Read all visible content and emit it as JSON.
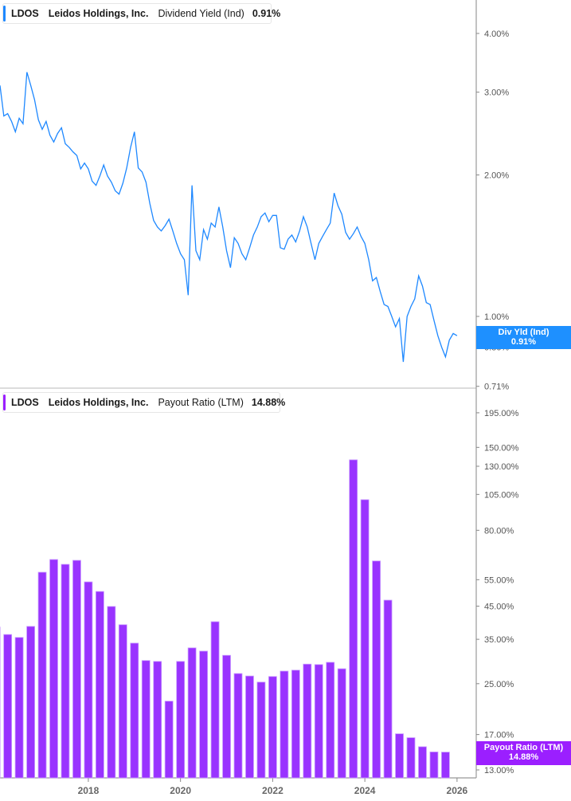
{
  "colors": {
    "yield_line": "#1e88ff",
    "payout_bar": "#9933ff",
    "payout_bar_edge": "#c99cff",
    "axis": "#999999",
    "yield_badge": "#1e90ff",
    "payout_badge": "#9b1fff"
  },
  "top_legend": {
    "ticker": "LDOS",
    "company": "Leidos Holdings, Inc.",
    "metric": "Dividend Yield (Ind)",
    "value": "0.91%"
  },
  "bottom_legend": {
    "ticker": "LDOS",
    "company": "Leidos Holdings, Inc.",
    "metric": "Payout Ratio (LTM)",
    "value": "14.88%"
  },
  "top_badge": {
    "label": "Div Yld (Ind)",
    "value": "0.91%"
  },
  "bottom_badge": {
    "label": "Payout Ratio (LTM)",
    "value": "14.88%"
  },
  "chart_data": [
    {
      "type": "line",
      "series_name": "Dividend Yield (Ind)",
      "y_scale": "log",
      "y_unit": "%",
      "y_ticks": [
        "4.00%",
        "3.00%",
        "2.00%",
        "1.00%",
        "0.86%",
        "0.71%"
      ],
      "y_tick_values": [
        4.0,
        3.0,
        2.0,
        1.0,
        0.86,
        0.71
      ],
      "xlim": [
        "2016-02",
        "2026-06"
      ],
      "grid": false,
      "x": [
        "2016-02",
        "2016-03",
        "2016-04",
        "2016-05",
        "2016-06",
        "2016-07",
        "2016-08",
        "2016-09",
        "2016-10",
        "2016-11",
        "2016-12",
        "2017-01",
        "2017-02",
        "2017-03",
        "2017-04",
        "2017-05",
        "2017-06",
        "2017-07",
        "2017-08",
        "2017-09",
        "2017-10",
        "2017-11",
        "2017-12",
        "2018-01",
        "2018-02",
        "2018-03",
        "2018-04",
        "2018-05",
        "2018-06",
        "2018-07",
        "2018-08",
        "2018-09",
        "2018-10",
        "2018-11",
        "2018-12",
        "2019-01",
        "2019-02",
        "2019-03",
        "2019-04",
        "2019-05",
        "2019-06",
        "2019-07",
        "2019-08",
        "2019-09",
        "2019-10",
        "2019-11",
        "2019-12",
        "2020-01",
        "2020-02",
        "2020-03",
        "2020-04",
        "2020-05",
        "2020-06",
        "2020-07",
        "2020-08",
        "2020-09",
        "2020-10",
        "2020-11",
        "2020-12",
        "2021-01",
        "2021-02",
        "2021-03",
        "2021-04",
        "2021-05",
        "2021-06",
        "2021-07",
        "2021-08",
        "2021-09",
        "2021-10",
        "2021-11",
        "2021-12",
        "2022-01",
        "2022-02",
        "2022-03",
        "2022-04",
        "2022-05",
        "2022-06",
        "2022-07",
        "2022-08",
        "2022-09",
        "2022-10",
        "2022-11",
        "2022-12",
        "2023-01",
        "2023-02",
        "2023-03",
        "2023-04",
        "2023-05",
        "2023-06",
        "2023-07",
        "2023-08",
        "2023-09",
        "2023-10",
        "2023-11",
        "2023-12",
        "2024-01",
        "2024-02",
        "2024-03",
        "2024-04",
        "2024-05",
        "2024-06",
        "2024-07",
        "2024-08",
        "2024-09",
        "2024-10",
        "2024-11",
        "2024-12",
        "2025-01",
        "2025-02",
        "2025-03",
        "2025-04",
        "2025-05",
        "2025-06",
        "2025-07",
        "2025-08",
        "2025-09",
        "2025-10",
        "2025-11",
        "2025-12",
        "2026-01"
      ],
      "y": [
        3.1,
        2.67,
        2.7,
        2.6,
        2.47,
        2.64,
        2.57,
        3.31,
        3.1,
        2.89,
        2.62,
        2.5,
        2.6,
        2.43,
        2.35,
        2.45,
        2.52,
        2.33,
        2.29,
        2.24,
        2.2,
        2.06,
        2.12,
        2.06,
        1.94,
        1.9,
        1.99,
        2.1,
        1.99,
        1.93,
        1.85,
        1.82,
        1.92,
        2.07,
        2.29,
        2.47,
        2.07,
        2.03,
        1.93,
        1.74,
        1.6,
        1.55,
        1.52,
        1.56,
        1.61,
        1.52,
        1.43,
        1.36,
        1.32,
        1.11,
        1.9,
        1.38,
        1.32,
        1.53,
        1.46,
        1.58,
        1.55,
        1.71,
        1.55,
        1.38,
        1.27,
        1.47,
        1.43,
        1.36,
        1.32,
        1.4,
        1.49,
        1.55,
        1.63,
        1.66,
        1.59,
        1.64,
        1.64,
        1.4,
        1.39,
        1.46,
        1.49,
        1.44,
        1.52,
        1.63,
        1.55,
        1.43,
        1.32,
        1.43,
        1.48,
        1.53,
        1.58,
        1.83,
        1.72,
        1.65,
        1.51,
        1.46,
        1.5,
        1.55,
        1.48,
        1.43,
        1.32,
        1.19,
        1.21,
        1.13,
        1.06,
        1.05,
        1.0,
        0.95,
        0.99,
        0.8,
        1.0,
        1.05,
        1.09,
        1.22,
        1.16,
        1.07,
        1.06,
        0.98,
        0.91,
        0.86,
        0.82,
        0.89,
        0.92,
        0.91
      ]
    },
    {
      "type": "bar",
      "series_name": "Payout Ratio (LTM)",
      "y_scale": "log",
      "y_unit": "%",
      "y_ticks": [
        "195.00%",
        "150.00%",
        "130.00%",
        "105.00%",
        "80.00%",
        "55.00%",
        "45.00%",
        "35.00%",
        "25.00%",
        "17.00%",
        "13.00%"
      ],
      "y_tick_values": [
        195,
        150,
        130,
        105,
        80,
        55,
        45,
        35,
        25,
        17,
        13
      ],
      "x_ticks": [
        "2018",
        "2020",
        "2022",
        "2024",
        "2026"
      ],
      "xlim": [
        "2016-02",
        "2026-06"
      ],
      "grid": false,
      "categories": [
        "2015-12",
        "2016-03",
        "2016-06",
        "2016-09",
        "2016-12",
        "2017-03",
        "2017-06",
        "2017-09",
        "2017-12",
        "2018-03",
        "2018-06",
        "2018-09",
        "2018-12",
        "2019-03",
        "2019-06",
        "2019-09",
        "2019-12",
        "2020-03",
        "2020-06",
        "2020-09",
        "2020-12",
        "2021-03",
        "2021-06",
        "2021-09",
        "2021-12",
        "2022-03",
        "2022-06",
        "2022-09",
        "2022-12",
        "2023-03",
        "2023-06",
        "2023-09",
        "2023-12",
        "2024-03",
        "2024-06",
        "2024-09",
        "2024-12",
        "2025-03",
        "2025-06",
        "2025-09"
      ],
      "values": [
        38.4,
        36.3,
        35.5,
        38.6,
        58.2,
        64.1,
        61.8,
        63.7,
        54.1,
        50.3,
        44.9,
        39.1,
        34.0,
        29.8,
        29.6,
        21.9,
        29.6,
        32.8,
        32.0,
        40.0,
        31.0,
        27.0,
        26.5,
        25.3,
        26.4,
        27.5,
        27.7,
        29.0,
        28.9,
        29.4,
        28.0,
        136.5,
        100.9,
        63.4,
        47.1,
        17.1,
        16.6,
        15.5,
        14.9,
        14.88
      ]
    }
  ]
}
